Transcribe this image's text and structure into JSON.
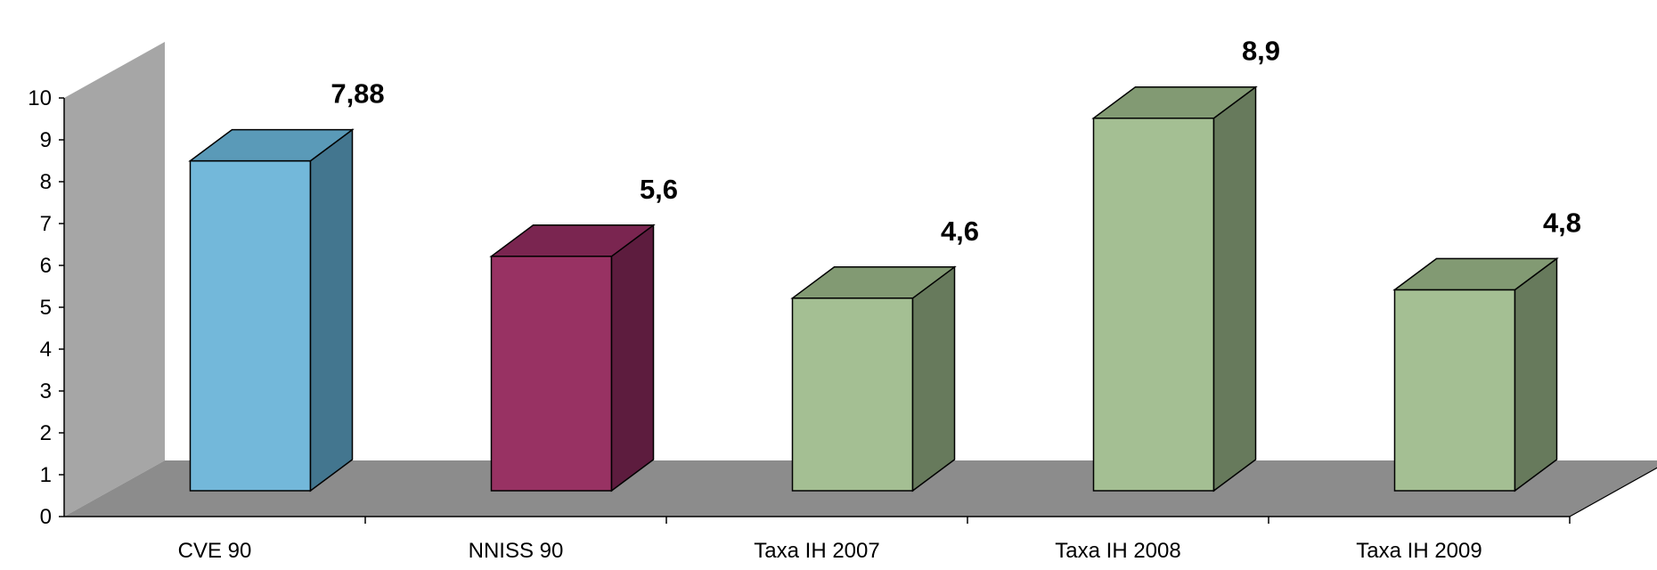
{
  "chart_data": {
    "type": "bar",
    "style": "3d-column",
    "categories": [
      "CVE 90",
      "NNISS 90",
      "Taxa IH 2007",
      "Taxa IH 2008",
      "Taxa IH 2009"
    ],
    "values": [
      7.88,
      5.6,
      4.6,
      8.9,
      4.8
    ],
    "data_labels": [
      "7,88",
      "5,6",
      "4,6",
      "8,9",
      "4,8"
    ],
    "bar_colors": [
      {
        "front": "#73b8da",
        "top": "#5a9ab8",
        "side": "#43768f"
      },
      {
        "front": "#983263",
        "top": "#7a2550",
        "side": "#5d1c3e"
      },
      {
        "front": "#a4bf93",
        "top": "#829a73",
        "side": "#677a5c"
      },
      {
        "front": "#a4bf93",
        "top": "#829a73",
        "side": "#677a5c"
      },
      {
        "front": "#a4bf93",
        "top": "#829a73",
        "side": "#677a5c"
      }
    ],
    "wall_color": "#a6a6a6",
    "floor_color": "#8c8c8c",
    "y_ticks": [
      "0",
      "1",
      "2",
      "3",
      "4",
      "5",
      "6",
      "7",
      "8",
      "9",
      "10"
    ],
    "ylim": [
      0,
      10
    ],
    "title": "",
    "xlabel": "",
    "ylabel": "",
    "grid": false,
    "legend": "none"
  }
}
